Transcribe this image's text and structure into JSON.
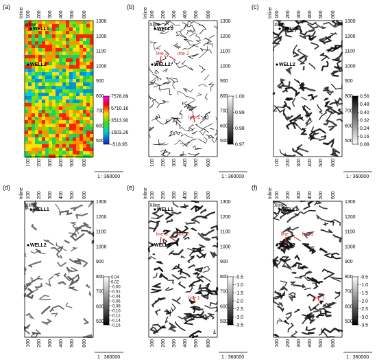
{
  "figure": {
    "colors": {
      "frame": "#000000",
      "well_label": "#000000",
      "line_marker": "#d62020",
      "background": "#ffffff"
    },
    "shared": {
      "inline_label": "Inline",
      "xline_label": "Xline",
      "scale_label": "1 : 360000",
      "inline_ticks": [
        "100",
        "200",
        "300",
        "400",
        "500",
        "600"
      ],
      "xline_ticks": [
        "1300",
        "1200",
        "1100",
        "1000",
        "900",
        "800",
        "700",
        "600",
        "500"
      ]
    },
    "panels": [
      {
        "letter": "(a)",
        "kind": "rainbow",
        "wells": [
          "WELL1",
          "WELL2"
        ],
        "lines": [],
        "colorbar": {
          "type": "rainbow",
          "ticks": [
            "7578.89",
            "5710.16",
            "3513.90",
            "1503.26",
            "-518.95"
          ]
        }
      },
      {
        "letter": "(b)",
        "kind": "gray",
        "wells": [
          "WELL1",
          "WELL2"
        ],
        "lines": [
          "line 3",
          "line 2",
          "line 1"
        ],
        "colorbar": {
          "type": "gray",
          "ticks": [
            "1.00",
            "0.99",
            "0.98",
            "0.97"
          ]
        }
      },
      {
        "letter": "(c)",
        "kind": "gray",
        "wells": [
          "WELL1",
          "WELL2"
        ],
        "lines": [],
        "colorbar": {
          "type": "gray",
          "ticks": [
            "0.56",
            "0.48",
            "0.40",
            "0.32",
            "0.24",
            "0.16",
            "0.08"
          ]
        }
      },
      {
        "letter": "(d)",
        "kind": "gray",
        "wells": [
          "WELL1",
          "WELL2"
        ],
        "lines": [],
        "colorbar": {
          "type": "gray",
          "ticks": [
            "0.04",
            "0.02",
            "-0.00",
            "-0.02",
            "-0.04",
            "-0.06",
            "-0.08",
            "-0.10",
            "-0.12",
            "-0.14",
            "-0.16"
          ]
        }
      },
      {
        "letter": "(e)",
        "kind": "gray",
        "wells": [
          "WELL1",
          "WELL2"
        ],
        "lines": [
          "line 3",
          "line 2",
          "line 1"
        ],
        "colorbar": {
          "type": "gray",
          "ticks": [
            "-0.5",
            "-1.0",
            "-1.5",
            "-2.0",
            "-2.5",
            "-3.0",
            "-3.5"
          ]
        }
      },
      {
        "letter": "(f)",
        "kind": "gray",
        "wells": [
          "WELL1",
          "WELL2"
        ],
        "lines": [
          "line 3",
          "line 2",
          "line 1"
        ],
        "colorbar": {
          "type": "gray",
          "ticks": [
            "-0.5",
            "-1.0",
            "-1.5",
            "-2.0",
            "-2.5",
            "-3.0",
            "-3.5"
          ]
        }
      }
    ]
  }
}
